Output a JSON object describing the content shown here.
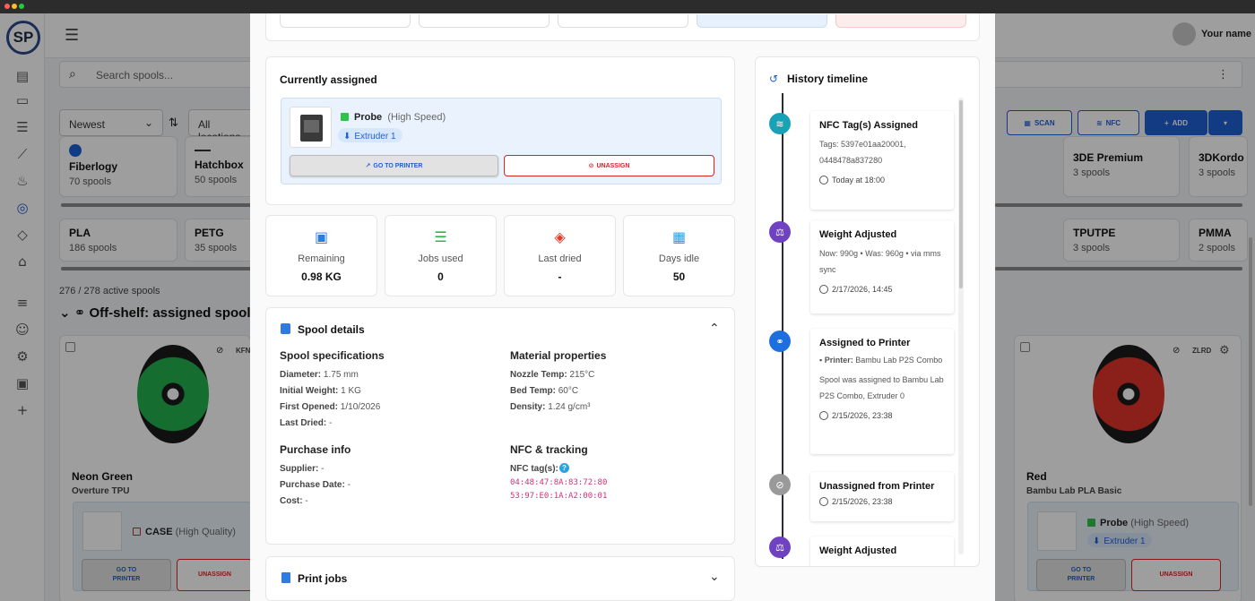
{
  "header": {
    "user_name": "Your name",
    "logo_text": "SP"
  },
  "search": {
    "placeholder": "Search spools..."
  },
  "filters": {
    "sort": "Newest",
    "location": "All locations"
  },
  "toolbar": {
    "scan_label": "SCAN",
    "nfc_label": "NFC",
    "add_label": "ADD"
  },
  "brands": [
    {
      "name": "Fiberlogy",
      "count": "70 spools"
    },
    {
      "name": "Hatchbox",
      "count": "50 spools"
    },
    {
      "name": "3DE Premium",
      "count": "3 spools"
    },
    {
      "name": "3DKordo",
      "count": "3 spools"
    }
  ],
  "materials": [
    {
      "name": "PLA",
      "count": "186 spools"
    },
    {
      "name": "PETG",
      "count": "35 spools"
    },
    {
      "name": "TPUTPE",
      "count": "3 spools"
    },
    {
      "name": "PMMA",
      "count": "2 spools"
    }
  ],
  "list": {
    "active_count": "276 / 278 active spools",
    "section_title": "Off-shelf: assigned spools"
  },
  "cards": {
    "left": {
      "code": "KFN",
      "name": "Neon Green",
      "sub": "Overture TPU",
      "printer": "CASE",
      "printer_detail": "(High Quality)",
      "go_label": "GO TO PRINTER",
      "unassign_label": "UNASSIGN",
      "color": "#22b14c"
    },
    "right": {
      "code": "ZLRD",
      "name": "Red",
      "sub": "Bambu Lab PLA Basic",
      "printer": "Probe",
      "printer_detail": "(High Speed)",
      "extruder": "Extruder 1",
      "go_label": "GO TO PRINTER",
      "unassign_label": "UNASSIGN",
      "color": "#e0352b"
    }
  },
  "modal": {
    "assigned": {
      "title": "Currently assigned",
      "printer": "Probe",
      "printer_detail": "(High Speed)",
      "extruder": "Extruder 1",
      "go_label": "GO TO PRINTER",
      "unassign_label": "UNASSIGN"
    },
    "stats": [
      {
        "label": "Remaining",
        "value": "0.98 KG",
        "icon": "spool-icon"
      },
      {
        "label": "Jobs used",
        "value": "0",
        "icon": "list-icon"
      },
      {
        "label": "Last dried",
        "value": "-",
        "icon": "drop-icon"
      },
      {
        "label": "Days idle",
        "value": "50",
        "icon": "calendar-icon"
      }
    ],
    "details": {
      "title": "Spool details",
      "spec_title": "Spool specifications",
      "specs": [
        {
          "k": "Diameter:",
          "v": "1.75 mm"
        },
        {
          "k": "Initial Weight:",
          "v": "1 KG"
        },
        {
          "k": "First Opened:",
          "v": "1/10/2026"
        },
        {
          "k": "Last Dried:",
          "v": "-"
        }
      ],
      "material_title": "Material properties",
      "material": [
        {
          "k": "Nozzle Temp:",
          "v": "215°C"
        },
        {
          "k": "Bed Temp:",
          "v": "60°C"
        },
        {
          "k": "Density:",
          "v": "1.24 g/cm³"
        }
      ],
      "purchase_title": "Purchase info",
      "purchase": [
        {
          "k": "Supplier:",
          "v": "-"
        },
        {
          "k": "Purchase Date:",
          "v": "-"
        },
        {
          "k": "Cost:",
          "v": "-"
        }
      ],
      "nfc_title": "NFC & tracking",
      "nfc_label": "NFC tag(s):",
      "nfc_tags": [
        "04:48:47:8A:83:72:80",
        "53:97:E0:1A:A2:00:01"
      ]
    },
    "print_jobs": {
      "title": "Print jobs"
    },
    "history": {
      "title": "History timeline",
      "events": [
        {
          "title": "NFC Tag(s) Assigned",
          "desc": "Tags: 5397e01aa20001, 0448478a837280",
          "time": "Today at 18:00",
          "color": "#17a2b8"
        },
        {
          "title": "Weight Adjusted",
          "desc": "Now: 990g • Was: 960g • via mms sync",
          "time": "2/17/2026, 14:45",
          "color": "#6f42c1"
        },
        {
          "title": "Assigned to Printer",
          "printer_label": "Printer:",
          "printer": "Bambu Lab P2S Combo",
          "desc": "Spool was assigned to Bambu Lab P2S Combo, Extruder 0",
          "time": "2/15/2026, 23:38",
          "color": "#1d6fe0"
        },
        {
          "title": "Unassigned from Printer",
          "time": "2/15/2026, 23:38",
          "color": "#9a9a9a"
        },
        {
          "title": "Weight Adjusted",
          "color": "#6f42c1"
        }
      ]
    }
  }
}
